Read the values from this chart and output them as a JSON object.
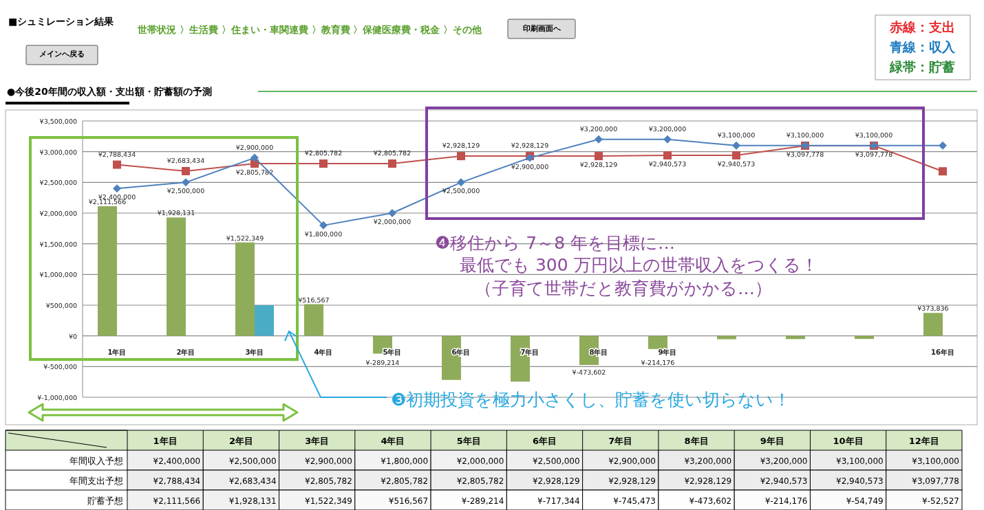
{
  "chart_data": [
    {
      "type": "bar",
      "title": "●今後20年間の収入額・支出額・貯蓄額の予測",
      "categories": [
        "1年目",
        "2年目",
        "3年目",
        "4年目",
        "5年目",
        "6年目",
        "7年目",
        "8年目",
        "9年目",
        null,
        null,
        null,
        "16年目"
      ],
      "ylim": [
        -1000000,
        3500000
      ],
      "yticks": [
        {
          "value": -1000000,
          "label": "¥-1,000,000"
        },
        {
          "value": -500000,
          "label": "¥-500,000"
        },
        {
          "value": 0,
          "label": "¥0"
        },
        {
          "value": 500000,
          "label": "¥500,000"
        },
        {
          "value": 1000000,
          "label": "¥1,000,000"
        },
        {
          "value": 1500000,
          "label": "¥1,500,000"
        },
        {
          "value": 2000000,
          "label": "¥2,000,000"
        },
        {
          "value": 2500000,
          "label": "¥2,500,000"
        },
        {
          "value": 3000000,
          "label": "¥3,000,000"
        },
        {
          "value": 3500000,
          "label": "¥3,500,000"
        }
      ],
      "grid": "y",
      "series": [
        {
          "type": "bar",
          "color": "#8fac5a",
          "values": [
            2111566,
            1928131,
            1522349,
            516567,
            -289214,
            -717344,
            -745473,
            -473602,
            -214176,
            -54749,
            -52527,
            -50000,
            373836
          ],
          "value_labels": [
            "¥2,111,566",
            "¥1,928,131",
            "¥1,522,349",
            "¥516,567",
            "¥-289,214",
            null,
            null,
            "¥-473,602",
            "¥-214,176",
            null,
            null,
            null,
            "¥373,836"
          ]
        },
        {
          "type": "bar",
          "color": "#4bacc6",
          "values": [
            null,
            null,
            500000,
            null,
            null,
            null,
            null,
            null,
            null,
            null,
            null,
            null,
            null
          ]
        },
        {
          "type": "line",
          "color": "#c0504d",
          "marker": "square",
          "values": [
            2788434,
            2683434,
            2805782,
            2805782,
            2805782,
            2928129,
            2928129,
            2928129,
            2940573,
            2940573,
            3097778,
            3097778,
            2680000
          ],
          "value_labels": [
            "¥2,788,434",
            "¥2,683,434",
            "¥2,805,782",
            "¥2,805,782",
            "¥2,805,782",
            "¥2,928,129",
            "¥2,928,129",
            "¥2,928,129",
            "¥2,940,573",
            "¥2,940,573",
            "¥3,097,778",
            "¥3,097,778",
            null
          ]
        },
        {
          "type": "line",
          "color": "#4f81bd",
          "marker": "diamond",
          "values": [
            2400000,
            2500000,
            2900000,
            1800000,
            2000000,
            2500000,
            2900000,
            3200000,
            3200000,
            3100000,
            3100000,
            3100000,
            3100000
          ],
          "value_labels": [
            "¥2,400,000",
            "¥2,500,000",
            "¥2,900,000",
            "¥1,800,000",
            "¥2,000,000",
            "¥2,500,000",
            "¥2,900,000",
            "¥3,200,000",
            "¥3,200,000",
            "¥3,100,000",
            "¥3,100,000",
            "¥3,100,000",
            null
          ]
        }
      ],
      "annotations": [
        "■シュミレーション結果",
        "メインへ戻る",
        "世帯状況 〉生活費 〉住まい・車関連費 〉教育費 〉保健医療費・税金 〉その他",
        "印刷画面へ",
        "赤線：支出",
        "青線：収入",
        "緑帯：貯蓄",
        "❹移住から 7～8 年を目標に…",
        "最低でも 300 万円以上の世帯収入をつくる！",
        "（子育て世帯だと教育費がかかる…）",
        "❸初期投資を極力小さくし、貯蓄を使い切らない！"
      ]
    },
    {
      "type": "heatmap",
      "categories": [
        "1年目",
        "2年目",
        "3年目",
        "4年目",
        "5年目",
        "6年目",
        "7年目",
        "8年目",
        "9年目",
        "10年目",
        "12年目"
      ],
      "y_categories": [
        "年間収入予想",
        "年間支出予想",
        "貯蓄予想"
      ],
      "cells": [
        [
          2400000,
          2500000,
          2900000,
          1800000,
          2000000,
          2500000,
          2900000,
          3200000,
          3200000,
          3100000,
          3100000
        ],
        [
          2788434,
          2683434,
          2805782,
          2805782,
          2805782,
          2928129,
          2928129,
          2928129,
          2940573,
          2940573,
          3097778
        ],
        [
          2111566,
          1928131,
          1522349,
          516567,
          -289214,
          -717344,
          -745473,
          -473602,
          -214176,
          -54749,
          -52527
        ]
      ],
      "cell_labels": [
        [
          "¥2,400,000",
          "¥2,500,000",
          "¥2,900,000",
          "¥1,800,000",
          "¥2,000,000",
          "¥2,500,000",
          "¥2,900,000",
          "¥3,200,000",
          "¥3,200,000",
          "¥3,100,000",
          "¥3,100,000"
        ],
        [
          "¥2,788,434",
          "¥2,683,434",
          "¥2,805,782",
          "¥2,805,782",
          "¥2,805,782",
          "¥2,928,129",
          "¥2,928,129",
          "¥2,928,129",
          "¥2,940,573",
          "¥2,940,573",
          "¥3,097,778"
        ],
        [
          "¥2,111,566",
          "¥1,928,131",
          "¥1,522,349",
          "¥516,567",
          "¥-289,214",
          "¥-717,344",
          "¥-745,473",
          "¥-473,602",
          "¥-214,176",
          "¥-54,749",
          "¥-52,527"
        ]
      ]
    }
  ]
}
